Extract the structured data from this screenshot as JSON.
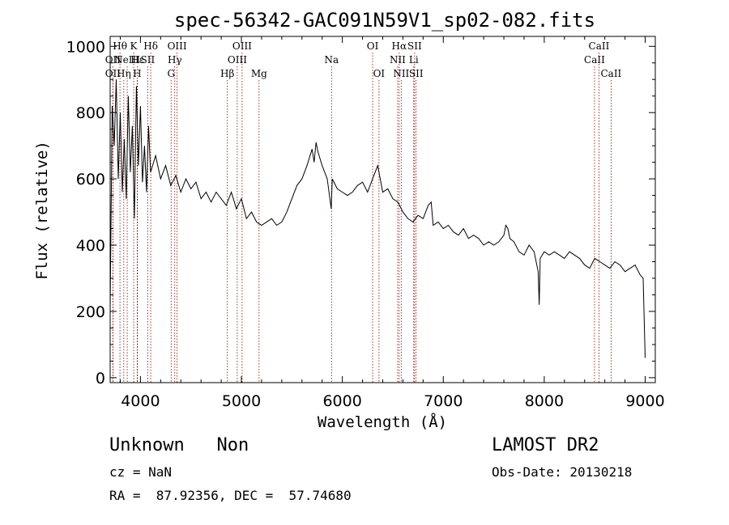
{
  "chart_data": {
    "type": "line",
    "title": "spec-56342-GAC091N59V1_sp02-082.fits",
    "xlabel": "Wavelength (Å)",
    "ylabel": "Flux (relative)",
    "xlim": [
      3700,
      9100
    ],
    "ylim": [
      -15,
      1030
    ],
    "xticks": [
      4000,
      5000,
      6000,
      7000,
      8000,
      9000
    ],
    "yticks": [
      0,
      200,
      400,
      600,
      800,
      1000
    ],
    "grid": false,
    "series": [
      {
        "x": [
          3700,
          3720,
          3740,
          3760,
          3780,
          3800,
          3820,
          3840,
          3860,
          3880,
          3900,
          3920,
          3940,
          3960,
          3980,
          4000,
          4020,
          4040,
          4060,
          4080,
          4100,
          4150,
          4200,
          4250,
          4300,
          4350,
          4400,
          4450,
          4500,
          4550,
          4600,
          4650,
          4700,
          4750,
          4800,
          4850,
          4900,
          4950,
          5000,
          5050,
          5100,
          5150,
          5200,
          5250,
          5300,
          5350,
          5400,
          5450,
          5500,
          5550,
          5600,
          5650,
          5700,
          5720,
          5740,
          5760,
          5780,
          5800,
          5850,
          5890,
          5900,
          5950,
          6000,
          6050,
          6100,
          6150,
          6200,
          6250,
          6300,
          6350,
          6400,
          6450,
          6500,
          6550,
          6600,
          6650,
          6700,
          6750,
          6800,
          6850,
          6880,
          6900,
          6950,
          7000,
          7050,
          7100,
          7150,
          7200,
          7250,
          7300,
          7350,
          7400,
          7450,
          7500,
          7550,
          7600,
          7620,
          7640,
          7660,
          7700,
          7750,
          7800,
          7850,
          7900,
          7940,
          7950,
          7960,
          8000,
          8050,
          8100,
          8150,
          8200,
          8250,
          8300,
          8350,
          8400,
          8450,
          8500,
          8550,
          8600,
          8650,
          8700,
          8750,
          8800,
          8850,
          8900,
          8950,
          8980,
          9000
        ],
        "y": [
          210,
          820,
          700,
          900,
          600,
          800,
          560,
          720,
          540,
          850,
          620,
          760,
          480,
          880,
          640,
          820,
          590,
          700,
          560,
          760,
          620,
          670,
          600,
          640,
          580,
          610,
          560,
          600,
          570,
          590,
          540,
          560,
          530,
          560,
          540,
          520,
          560,
          510,
          540,
          480,
          500,
          470,
          460,
          470,
          480,
          460,
          470,
          500,
          540,
          580,
          600,
          640,
          690,
          650,
          710,
          680,
          660,
          640,
          600,
          510,
          600,
          570,
          560,
          550,
          560,
          580,
          590,
          560,
          600,
          640,
          560,
          570,
          540,
          530,
          500,
          480,
          470,
          490,
          480,
          520,
          530,
          460,
          470,
          450,
          460,
          440,
          430,
          450,
          420,
          430,
          420,
          400,
          410,
          400,
          410,
          430,
          460,
          450,
          420,
          410,
          380,
          370,
          400,
          380,
          320,
          220,
          360,
          380,
          370,
          380,
          370,
          360,
          380,
          370,
          360,
          340,
          330,
          360,
          350,
          340,
          330,
          350,
          340,
          320,
          330,
          340,
          310,
          300,
          60
        ]
      }
    ],
    "line_ids": [
      {
        "x": 3727,
        "label": "OII",
        "row": 1
      },
      {
        "x": 3727,
        "label": "OII",
        "row": 2
      },
      {
        "x": 3797,
        "label": "Hθ",
        "row": 0
      },
      {
        "x": 3835,
        "label": "Hη",
        "row": 2
      },
      {
        "x": 3869,
        "label": "NeIII",
        "row": 1
      },
      {
        "x": 3933,
        "label": "K",
        "row": 0
      },
      {
        "x": 3968,
        "label": "H",
        "row": 2
      },
      {
        "x": 3970,
        "label": "Hε",
        "row": 1
      },
      {
        "x": 4072,
        "label": "SII",
        "row": 1
      },
      {
        "x": 4102,
        "label": "Hδ",
        "row": 0
      },
      {
        "x": 4304,
        "label": "G",
        "row": 2
      },
      {
        "x": 4340,
        "label": "Hγ",
        "row": 1
      },
      {
        "x": 4363,
        "label": "OIII",
        "row": 0
      },
      {
        "x": 4861,
        "label": "Hβ",
        "row": 2
      },
      {
        "x": 4959,
        "label": "OIII",
        "row": 1
      },
      {
        "x": 5007,
        "label": "OIII",
        "row": 0
      },
      {
        "x": 5175,
        "label": "Mg",
        "row": 2
      },
      {
        "x": 5893,
        "label": "Na",
        "row": 1
      },
      {
        "x": 6300,
        "label": "OI",
        "row": 0
      },
      {
        "x": 6363,
        "label": "OI",
        "row": 2
      },
      {
        "x": 6548,
        "label": "NII",
        "row": 1
      },
      {
        "x": 6563,
        "label": "Hα",
        "row": 0
      },
      {
        "x": 6583,
        "label": "NII",
        "row": 2
      },
      {
        "x": 6707,
        "label": "Li",
        "row": 1
      },
      {
        "x": 6716,
        "label": "SII",
        "row": 0
      },
      {
        "x": 6731,
        "label": "SII",
        "row": 2
      },
      {
        "x": 8498,
        "label": "CaII",
        "row": 1
      },
      {
        "x": 8542,
        "label": "CaII",
        "row": 0
      },
      {
        "x": 8662,
        "label": "CaII",
        "row": 2
      }
    ]
  },
  "info": {
    "class_text": "Unknown   Non",
    "survey": "LAMOST DR2",
    "cz": "cz = NaN",
    "obs_date": "Obs-Date: 20130218",
    "radec": "RA =  87.92356, DEC =  57.74680"
  },
  "colors": {
    "spectrum": "#000000",
    "line_marker": "#8b0000",
    "axes": "#000000"
  }
}
